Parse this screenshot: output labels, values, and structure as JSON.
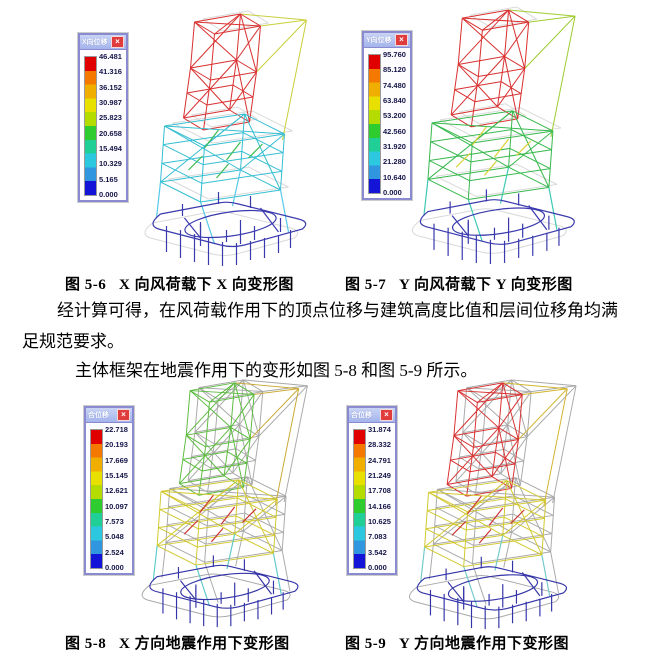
{
  "page_bg": "#ffffff",
  "legend_close_glyph": "×",
  "legend_palette": [
    "#e10000",
    "#f57900",
    "#f0ae00",
    "#e8e000",
    "#b4dc00",
    "#2ecc2e",
    "#1fcf96",
    "#2cc8e0",
    "#3096e0",
    "#1414d9"
  ],
  "paragraphs": {
    "p1_line1": "经计算可得，在风荷载作用下的顶点位移与建筑高度比值和层间位移角均满",
    "p1_line2": "足规范要求。",
    "p2": "主体框架在地震作用下的变形如图 5-8 和图 5-9 所示。"
  },
  "figures": [
    {
      "caption": "图 5-6   X 向风荷载下 X 向变形图",
      "legend": {
        "title": "X向位移",
        "values": [
          "46.481",
          "41.316",
          "36.152",
          "30.987",
          "25.823",
          "20.658",
          "15.494",
          "10.329",
          "5.165",
          "0.000"
        ]
      },
      "wire_colors": {
        "top": "#d93030",
        "boom": "#c9cf3a",
        "mid": "#35bed2",
        "legs": "#57c9e8",
        "base": "#3a3aae",
        "accent": "#3cbb52",
        "ghost": "#c9c9c9",
        "ghost_mode": "light"
      }
    },
    {
      "caption": "图 5-7   Y 向风荷载下 Y 向变形图",
      "legend": {
        "title": "Y向位移",
        "values": [
          "95.760",
          "85.120",
          "74.480",
          "63.840",
          "53.200",
          "42.560",
          "31.920",
          "21.280",
          "10.640",
          "0.000"
        ]
      },
      "wire_colors": {
        "top": "#d93030",
        "boom": "#9fcc33",
        "mid": "#38b94e",
        "legs": "#3fc9b4",
        "base": "#3a3aae",
        "accent": "#d9d23a",
        "ghost": "#c9c9c9",
        "ghost_mode": "light"
      }
    },
    {
      "caption": "图 5-8   X 方向地震作用下变形图",
      "legend": {
        "title": "合位移",
        "values": [
          "22.718",
          "20.193",
          "17.669",
          "15.145",
          "12.621",
          "10.097",
          "7.573",
          "5.048",
          "2.524",
          "0.000"
        ]
      },
      "wire_colors": {
        "top": "#5cbb3f",
        "boom": "#c9a832",
        "mid": "#d2c82f",
        "legs": "#5fc9c9",
        "base": "#3434a8",
        "accent": "#cc3333",
        "ghost": "#a0a0a0",
        "ghost_mode": "full"
      }
    },
    {
      "caption": "图 5-9   Y 方向地震作用下变形图",
      "legend": {
        "title": "合位移",
        "values": [
          "31.874",
          "28.332",
          "24.791",
          "21.249",
          "17.708",
          "14.166",
          "10.625",
          "7.083",
          "3.542",
          "0.000"
        ]
      },
      "wire_colors": {
        "top": "#d93030",
        "boom": "#d2b42f",
        "mid": "#d2c82f",
        "legs": "#74c9c9",
        "base": "#3434a8",
        "accent": "#cc3333",
        "ghost": "#a0a0a0",
        "ghost_mode": "full"
      }
    }
  ]
}
